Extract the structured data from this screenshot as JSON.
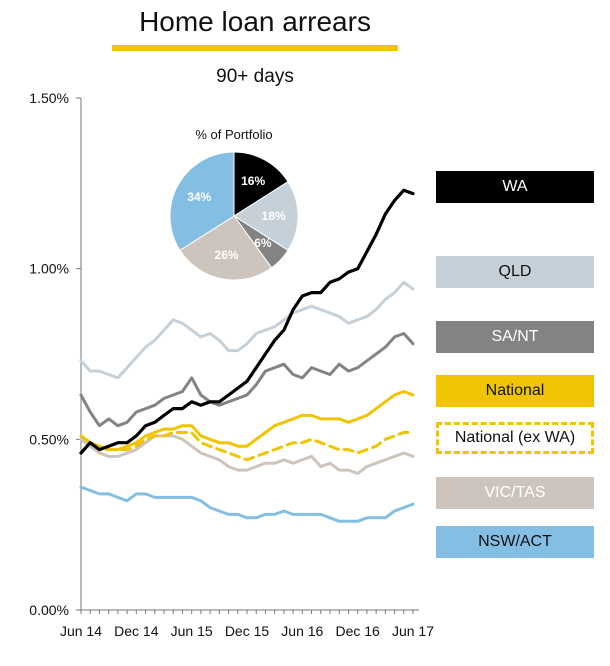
{
  "colors": {
    "WA": "#000000",
    "QLD": "#c6d0d9",
    "SA/NT": "#838383",
    "National": "#f0c400",
    "National (ex WA)": "#f0c400",
    "VIC/TAS": "#cdc5bd",
    "NSW/ACT": "#84bfe3",
    "accent": "#f0c400"
  },
  "chart_data": [
    {
      "type": "line",
      "title": "Home loan arrears",
      "subtitle": "90+ days",
      "xlabel": "",
      "ylabel": "",
      "x_tick_labels": [
        "Jun 14",
        "Dec 14",
        "Jun 15",
        "Dec 15",
        "Jun 16",
        "Dec 16",
        "Jun 17"
      ],
      "y_tick_labels": [
        "0.00%",
        "0.50%",
        "1.00%",
        "1.50%"
      ],
      "ylim": [
        0,
        1.5
      ],
      "y_unit": "%",
      "x": [
        "Jun 14",
        "Jul 14",
        "Aug 14",
        "Sep 14",
        "Oct 14",
        "Nov 14",
        "Dec 14",
        "Jan 15",
        "Feb 15",
        "Mar 15",
        "Apr 15",
        "May 15",
        "Jun 15",
        "Jul 15",
        "Aug 15",
        "Sep 15",
        "Oct 15",
        "Nov 15",
        "Dec 15",
        "Jan 16",
        "Feb 16",
        "Mar 16",
        "Apr 16",
        "May 16",
        "Jun 16",
        "Jul 16",
        "Aug 16",
        "Sep 16",
        "Oct 16",
        "Nov 16",
        "Dec 16",
        "Jan 17",
        "Feb 17",
        "Mar 17",
        "Apr 17",
        "May 17",
        "Jun 17"
      ],
      "grid": false,
      "legend_position": "right",
      "series": [
        {
          "name": "WA",
          "style": "solid",
          "values": [
            0.46,
            0.49,
            0.47,
            0.48,
            0.49,
            0.49,
            0.51,
            0.54,
            0.55,
            0.57,
            0.59,
            0.59,
            0.61,
            0.6,
            0.61,
            0.61,
            0.63,
            0.65,
            0.67,
            0.71,
            0.75,
            0.79,
            0.82,
            0.88,
            0.92,
            0.93,
            0.93,
            0.96,
            0.97,
            0.99,
            1.0,
            1.05,
            1.1,
            1.16,
            1.2,
            1.23,
            1.22
          ]
        },
        {
          "name": "QLD",
          "style": "solid",
          "values": [
            0.73,
            0.7,
            0.7,
            0.69,
            0.68,
            0.71,
            0.74,
            0.77,
            0.79,
            0.82,
            0.85,
            0.84,
            0.82,
            0.8,
            0.81,
            0.79,
            0.76,
            0.76,
            0.78,
            0.81,
            0.82,
            0.83,
            0.85,
            0.87,
            0.88,
            0.89,
            0.88,
            0.87,
            0.86,
            0.84,
            0.85,
            0.86,
            0.88,
            0.91,
            0.93,
            0.96,
            0.94
          ]
        },
        {
          "name": "SA/NT",
          "style": "solid",
          "values": [
            0.63,
            0.58,
            0.54,
            0.56,
            0.54,
            0.55,
            0.58,
            0.59,
            0.6,
            0.62,
            0.63,
            0.64,
            0.68,
            0.63,
            0.61,
            0.6,
            0.61,
            0.62,
            0.63,
            0.66,
            0.7,
            0.71,
            0.72,
            0.69,
            0.68,
            0.71,
            0.7,
            0.69,
            0.72,
            0.7,
            0.71,
            0.73,
            0.75,
            0.77,
            0.8,
            0.81,
            0.78
          ]
        },
        {
          "name": "National",
          "style": "solid",
          "values": [
            0.51,
            0.49,
            0.48,
            0.47,
            0.47,
            0.48,
            0.49,
            0.51,
            0.52,
            0.53,
            0.53,
            0.54,
            0.54,
            0.51,
            0.5,
            0.49,
            0.49,
            0.48,
            0.48,
            0.5,
            0.52,
            0.54,
            0.55,
            0.56,
            0.57,
            0.57,
            0.56,
            0.56,
            0.56,
            0.55,
            0.56,
            0.57,
            0.59,
            0.61,
            0.63,
            0.64,
            0.63
          ]
        },
        {
          "name": "National (ex WA)",
          "style": "dashed",
          "values": [
            0.51,
            0.49,
            0.47,
            0.47,
            0.47,
            0.47,
            0.48,
            0.5,
            0.51,
            0.51,
            0.52,
            0.52,
            0.52,
            0.49,
            0.48,
            0.47,
            0.46,
            0.45,
            0.44,
            0.45,
            0.46,
            0.47,
            0.48,
            0.49,
            0.49,
            0.5,
            0.49,
            0.48,
            0.47,
            0.47,
            0.46,
            0.47,
            0.48,
            0.5,
            0.51,
            0.52,
            0.52
          ]
        },
        {
          "name": "VIC/TAS",
          "style": "solid",
          "values": [
            0.5,
            0.48,
            0.46,
            0.45,
            0.45,
            0.46,
            0.47,
            0.49,
            0.51,
            0.51,
            0.51,
            0.5,
            0.48,
            0.46,
            0.45,
            0.44,
            0.42,
            0.41,
            0.41,
            0.42,
            0.43,
            0.43,
            0.44,
            0.43,
            0.44,
            0.45,
            0.42,
            0.43,
            0.41,
            0.41,
            0.4,
            0.42,
            0.43,
            0.44,
            0.45,
            0.46,
            0.45
          ]
        },
        {
          "name": "NSW/ACT",
          "style": "solid",
          "values": [
            0.36,
            0.35,
            0.34,
            0.34,
            0.33,
            0.32,
            0.34,
            0.34,
            0.33,
            0.33,
            0.33,
            0.33,
            0.33,
            0.32,
            0.3,
            0.29,
            0.28,
            0.28,
            0.27,
            0.27,
            0.28,
            0.28,
            0.29,
            0.28,
            0.28,
            0.28,
            0.28,
            0.27,
            0.26,
            0.26,
            0.26,
            0.27,
            0.27,
            0.27,
            0.29,
            0.3,
            0.31
          ]
        }
      ]
    },
    {
      "type": "pie",
      "title": "% of Portfolio",
      "slices": [
        {
          "name": "WA",
          "value": 16,
          "label": "16%"
        },
        {
          "name": "QLD",
          "value": 18,
          "label": "18%"
        },
        {
          "name": "SA/NT",
          "value": 6,
          "label": "6%"
        },
        {
          "name": "VIC/TAS",
          "value": 26,
          "label": "26%"
        },
        {
          "name": "NSW/ACT",
          "value": 34,
          "label": "34%"
        }
      ]
    }
  ],
  "legend": [
    {
      "label": "WA",
      "style": "solid"
    },
    {
      "label": "QLD",
      "style": "solid"
    },
    {
      "label": "SA/NT",
      "style": "solid"
    },
    {
      "label": "National",
      "style": "solid"
    },
    {
      "label": "National (ex WA)",
      "style": "dashed"
    },
    {
      "label": "VIC/TAS",
      "style": "solid"
    },
    {
      "label": "NSW/ACT",
      "style": "solid"
    }
  ]
}
